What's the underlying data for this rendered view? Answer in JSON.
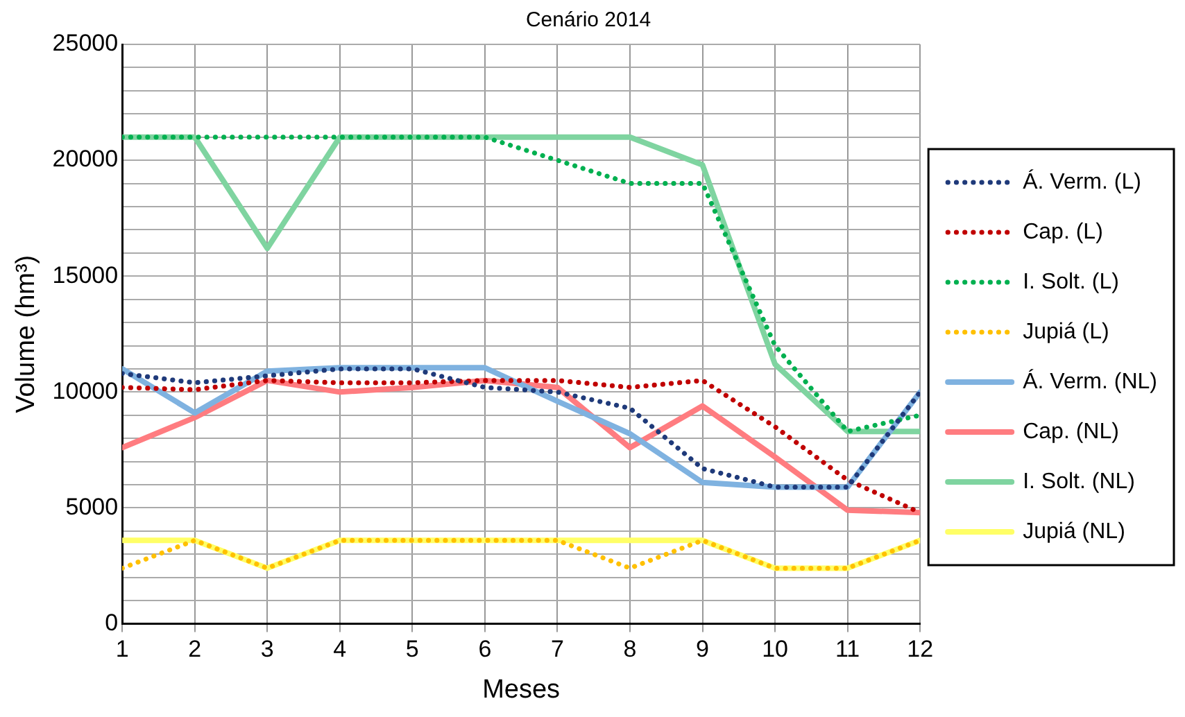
{
  "chart_data": {
    "type": "line",
    "title": "Cenário 2014",
    "xlabel": "Meses",
    "ylabel": "Volume (hm³)",
    "x": [
      1,
      2,
      3,
      4,
      5,
      6,
      7,
      8,
      9,
      10,
      11,
      12
    ],
    "xlim": [
      1,
      12
    ],
    "xticks": [
      1,
      2,
      3,
      4,
      5,
      6,
      7,
      8,
      9,
      10,
      11,
      12
    ],
    "ylim": [
      0,
      25000
    ],
    "yticks": [
      0,
      {
        "value": 1000,
        "label": null
      },
      {
        "value": 2000,
        "label": null
      },
      {
        "value": 3000,
        "label": null
      },
      {
        "value": 4000,
        "label": null
      },
      5000,
      {
        "value": 6000,
        "label": null
      },
      {
        "value": 7000,
        "label": null
      },
      {
        "value": 8000,
        "label": null
      },
      {
        "value": 9000,
        "label": null
      },
      10000,
      {
        "value": 11000,
        "label": null
      },
      {
        "value": 12000,
        "label": null
      },
      {
        "value": 13000,
        "label": null
      },
      {
        "value": 14000,
        "label": null
      },
      15000,
      {
        "value": 16000,
        "label": null
      },
      {
        "value": 17000,
        "label": null
      },
      {
        "value": 18000,
        "label": null
      },
      {
        "value": 19000,
        "label": null
      },
      20000,
      {
        "value": 21000,
        "label": null
      },
      {
        "value": 22000,
        "label": null
      },
      {
        "value": 23000,
        "label": null
      },
      {
        "value": 24000,
        "label": null
      },
      25000
    ],
    "grid": true,
    "legend": "right",
    "marker": "none",
    "series": [
      {
        "name": "Á. Verm. (L)",
        "color": "#1f3a7a",
        "line_style": "dotted",
        "values": [
          10800,
          10400,
          10700,
          11000,
          11000,
          10200,
          10000,
          9300,
          6700,
          5900,
          5900,
          10000
        ]
      },
      {
        "name": "Cap. (L)",
        "color": "#c00000",
        "line_style": "dotted",
        "values": [
          10200,
          10100,
          10500,
          10400,
          10400,
          10500,
          10500,
          10200,
          10500,
          8500,
          6200,
          4800
        ]
      },
      {
        "name": "I. Solt. (L)",
        "color": "#00b050",
        "line_style": "dotted",
        "values": [
          21000,
          21000,
          21000,
          21000,
          21000,
          21000,
          20000,
          19000,
          19000,
          12000,
          8300,
          9000
        ]
      },
      {
        "name": "Jupiá (L)",
        "color": "#ffc000",
        "line_style": "dotted",
        "values": [
          2400,
          3600,
          2400,
          3600,
          3600,
          3600,
          3600,
          2400,
          3600,
          2400,
          2400,
          3600
        ]
      },
      {
        "name": "Á. Verm. (NL)",
        "color": "#7fb2e0",
        "line_style": "solid",
        "values": [
          11000,
          9100,
          10900,
          11050,
          11050,
          11050,
          9600,
          8200,
          6100,
          5900,
          5900,
          10000
        ]
      },
      {
        "name": "Cap. (NL)",
        "color": "#ff7c80",
        "line_style": "solid",
        "values": [
          7600,
          8900,
          10500,
          10000,
          10200,
          10500,
          10200,
          7600,
          9400,
          7200,
          4900,
          4800
        ]
      },
      {
        "name": "I. Solt. (NL)",
        "color": "#7fd4a0",
        "line_style": "solid",
        "values": [
          21000,
          21000,
          16200,
          21000,
          21000,
          21000,
          21000,
          21000,
          19800,
          11200,
          8300,
          8300
        ]
      },
      {
        "name": "Jupiá (NL)",
        "color": "#ffff66",
        "line_style": "solid",
        "values": [
          3600,
          3600,
          2400,
          3600,
          3600,
          3600,
          3600,
          3600,
          3600,
          2400,
          2400,
          3600
        ]
      }
    ]
  }
}
